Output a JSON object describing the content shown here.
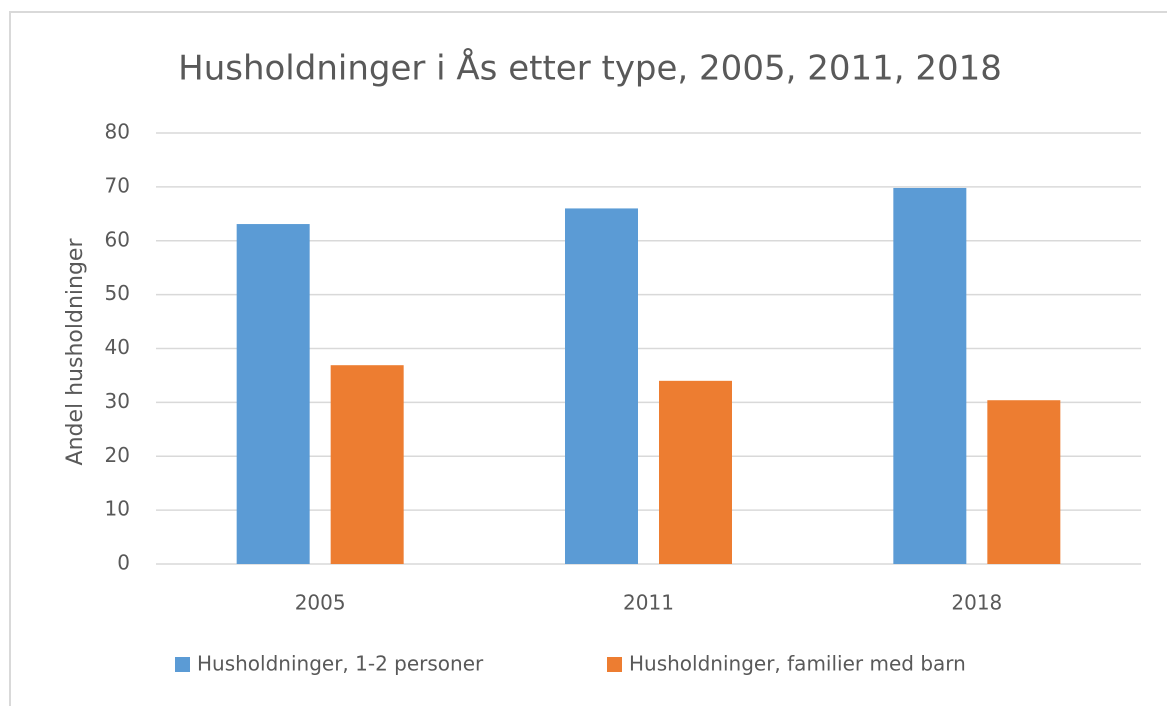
{
  "chart_data": {
    "type": "bar",
    "title": "Husholdninger i Ås etter type, 2005, 2011, 2018",
    "y_label": "Andel husholdninger",
    "categories": [
      "2005",
      "2011",
      "2018"
    ],
    "series": [
      {
        "name": "Husholdninger, 1-2 personer",
        "color": "#5b9bd5",
        "values": [
          63.1,
          66,
          69.8
        ]
      },
      {
        "name": "Husholdninger, familier med barn",
        "color": "#ed7d31",
        "values": [
          36.9,
          34,
          30.4
        ]
      }
    ],
    "ylim": [
      0,
      80
    ],
    "yticks": [
      0,
      10,
      20,
      30,
      40,
      50,
      60,
      70,
      80
    ],
    "grid": true,
    "legend": "bottom"
  }
}
